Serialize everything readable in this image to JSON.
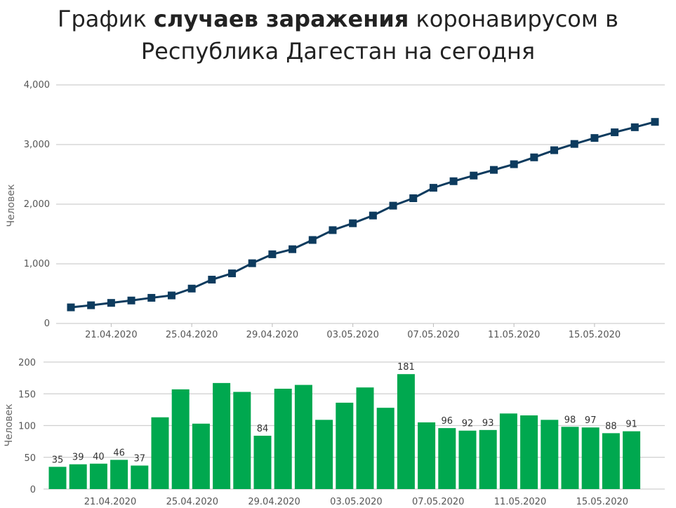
{
  "title": {
    "part1": "График ",
    "bold": "случаев заражения",
    "part2": " коронавирусом в",
    "line2": "Республика Дагестан на сегодня"
  },
  "chart_data": [
    {
      "type": "line",
      "ylabel": "Человек",
      "ylim": [
        0,
        4000
      ],
      "yticks": [
        "0",
        "1,000",
        "2,000",
        "3,000",
        "4,000"
      ],
      "xtick_labels": [
        "21.04.2020",
        "25.04.2020",
        "29.04.2020",
        "03.05.2020",
        "07.05.2020",
        "11.05.2020",
        "15.05.2020"
      ],
      "line_color": "#0d3b5e",
      "values": [
        270,
        305,
        345,
        385,
        430,
        470,
        585,
        735,
        840,
        1010,
        1160,
        1245,
        1400,
        1565,
        1680,
        1810,
        1975,
        2100,
        2275,
        2385,
        2480,
        2575,
        2670,
        2785,
        2905,
        3010,
        3110,
        3205,
        3290,
        3380
      ]
    },
    {
      "type": "bar",
      "ylabel": "Человек",
      "ylim": [
        0,
        200
      ],
      "yticks": [
        "0",
        "50",
        "100",
        "150",
        "200"
      ],
      "xtick_labels": [
        "21.04.2020",
        "25.04.2020",
        "29.04.2020",
        "03.05.2020",
        "07.05.2020",
        "11.05.2020",
        "15.05.2020"
      ],
      "bar_color": "#00a84f",
      "values": [
        35,
        39,
        40,
        46,
        37,
        113,
        157,
        103,
        167,
        153,
        84,
        158,
        164,
        109,
        136,
        160,
        128,
        181,
        105,
        96,
        92,
        93,
        119,
        116,
        109,
        98,
        97,
        88,
        91
      ],
      "labels": [
        "35",
        "39",
        "40",
        "46",
        "37",
        "",
        "",
        "",
        "",
        "",
        "84",
        "",
        "",
        "",
        "",
        "",
        "",
        "181",
        "",
        "96",
        "92",
        "93",
        "",
        "",
        "",
        "98",
        "97",
        "88",
        "91"
      ]
    }
  ]
}
